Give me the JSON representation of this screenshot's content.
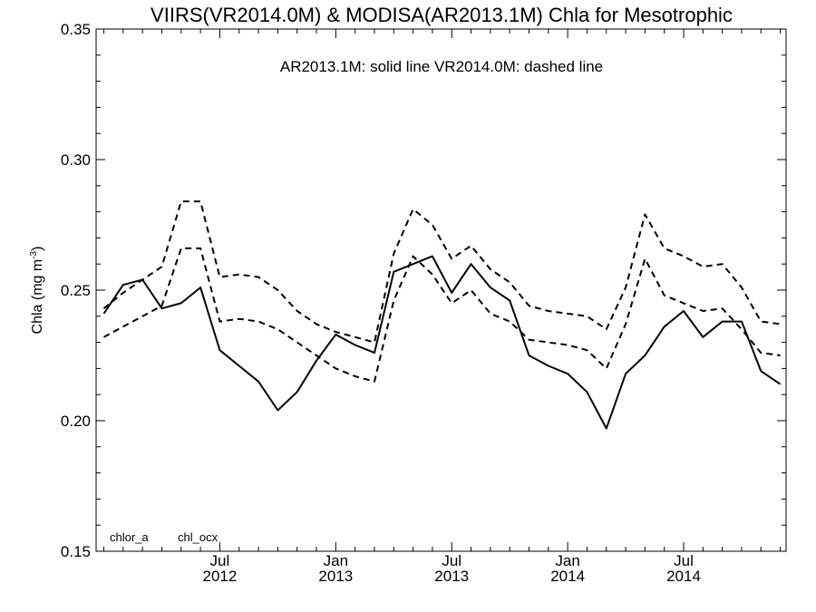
{
  "chart_data": {
    "type": "line",
    "title": "VIIRS(VR2014.0M) & MODISA(AR2013.1M)  Chla for Mesotrophic",
    "annotation": "AR2013.1M: solid line   VR2014.0M: dashed line",
    "ylabel": "Chla (mg m",
    "ylabel_sup": "-3",
    "ylabel_close": ")",
    "ylim": [
      0.15,
      0.35
    ],
    "yticks": [
      {
        "value": 0.15,
        "label": "0.15"
      },
      {
        "value": 0.2,
        "label": "0.20"
      },
      {
        "value": 0.25,
        "label": "0.25"
      },
      {
        "value": 0.3,
        "label": "0.30"
      },
      {
        "value": 0.35,
        "label": "0.35"
      }
    ],
    "xlim": [
      "2012-01",
      "2014-12"
    ],
    "xticks": [
      {
        "x": "2012-07",
        "month": "Jul",
        "year": "2012"
      },
      {
        "x": "2013-01",
        "month": "Jan",
        "year": "2013"
      },
      {
        "x": "2013-07",
        "month": "Jul",
        "year": "2013"
      },
      {
        "x": "2014-01",
        "month": "Jan",
        "year": "2014"
      },
      {
        "x": "2014-07",
        "month": "Jul",
        "year": "2014"
      }
    ],
    "legend": [
      "chlor_a",
      "chl_ocx"
    ],
    "x": [
      "2012-01",
      "2012-02",
      "2012-03",
      "2012-04",
      "2012-05",
      "2012-06",
      "2012-07",
      "2012-08",
      "2012-09",
      "2012-10",
      "2012-11",
      "2012-12",
      "2013-01",
      "2013-02",
      "2013-03",
      "2013-04",
      "2013-05",
      "2013-06",
      "2013-07",
      "2013-08",
      "2013-09",
      "2013-10",
      "2013-11",
      "2013-12",
      "2014-01",
      "2014-02",
      "2014-03",
      "2014-04",
      "2014-05",
      "2014-06",
      "2014-07",
      "2014-08",
      "2014-09",
      "2014-10",
      "2014-11",
      "2014-12"
    ],
    "series": [
      {
        "style": "solid",
        "values": [
          0.241,
          0.252,
          0.254,
          0.243,
          0.245,
          0.251,
          0.227,
          0.221,
          0.215,
          0.204,
          0.211,
          0.223,
          0.233,
          0.229,
          0.226,
          0.257,
          0.26,
          0.263,
          0.249,
          0.26,
          0.251,
          0.246,
          0.225,
          0.221,
          0.218,
          0.211,
          0.197,
          0.218,
          0.225,
          0.236,
          0.242,
          0.232,
          0.238,
          0.238,
          0.219,
          0.214
        ]
      },
      {
        "style": "dashed",
        "values": [
          0.243,
          0.249,
          0.254,
          0.259,
          0.284,
          0.284,
          0.255,
          0.256,
          0.255,
          0.25,
          0.242,
          0.237,
          0.234,
          0.232,
          0.23,
          0.264,
          0.281,
          0.275,
          0.262,
          0.267,
          0.258,
          0.253,
          0.244,
          0.242,
          0.241,
          0.24,
          0.235,
          0.251,
          0.279,
          0.266,
          0.263,
          0.259,
          0.26,
          0.251,
          0.238,
          0.237
        ]
      },
      {
        "style": "dashed",
        "values": [
          0.232,
          0.236,
          0.24,
          0.244,
          0.266,
          0.266,
          0.238,
          0.239,
          0.238,
          0.235,
          0.23,
          0.225,
          0.22,
          0.217,
          0.215,
          0.246,
          0.263,
          0.256,
          0.245,
          0.25,
          0.241,
          0.238,
          0.231,
          0.23,
          0.229,
          0.227,
          0.22,
          0.237,
          0.262,
          0.248,
          0.245,
          0.242,
          0.243,
          0.235,
          0.226,
          0.225
        ]
      }
    ]
  }
}
